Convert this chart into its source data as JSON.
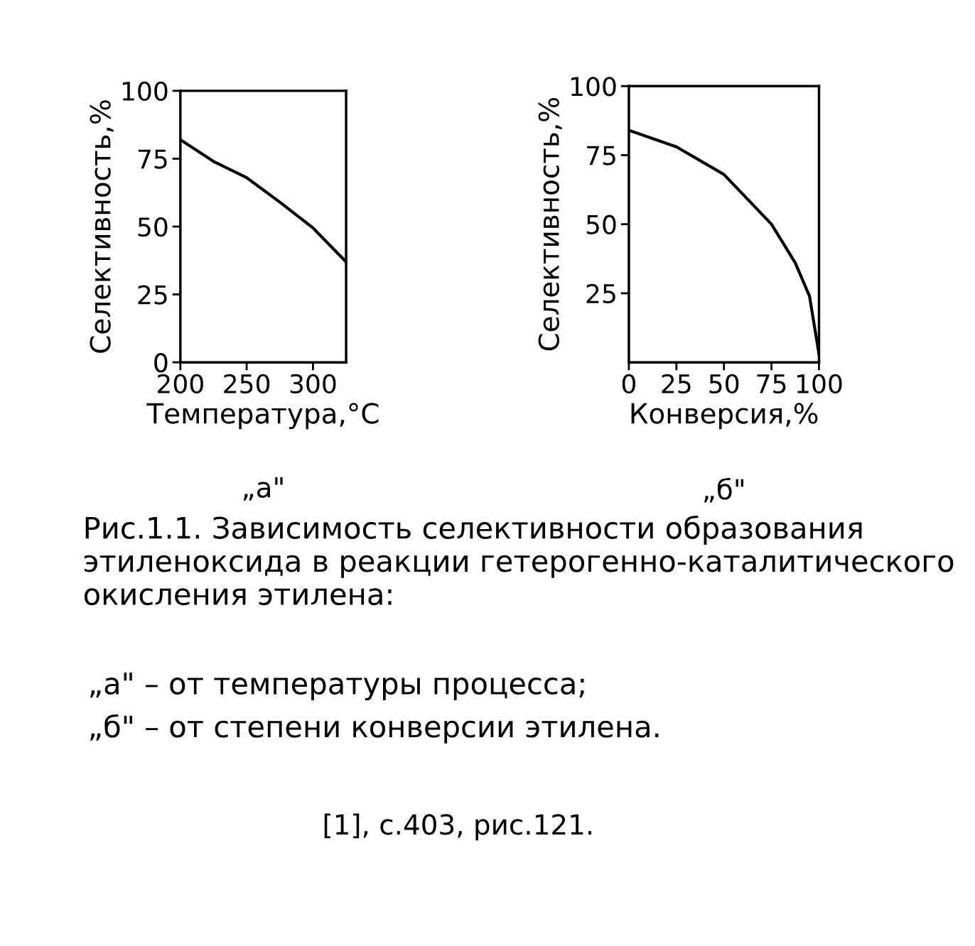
{
  "chart_data": [
    {
      "type": "line",
      "subtitle": "„а\"",
      "xlabel": "Температура,°С",
      "ylabel": "Селективность,%",
      "x": [
        200,
        225,
        250,
        275,
        300,
        325
      ],
      "series": [
        {
          "color": "#000000",
          "values": [
            82,
            74,
            68,
            59,
            49.5,
            37
          ]
        }
      ],
      "xlim": [
        200,
        325
      ],
      "ylim": [
        0,
        100
      ],
      "xticks": [
        200,
        250,
        300
      ],
      "yticks": [
        0,
        25,
        50,
        75,
        100
      ],
      "grid": false,
      "marker": "none",
      "line_style": "solid",
      "annotations": [
        "Рис.1.1. Зависимость селективности образования этиленоксида в реакции гетерогенно-каталитического окисления этилена:",
        "„а\" – от температуры процесса;",
        "„б\" – от степени конверсии этилена.",
        "[1], с.403, рис.121."
      ]
    },
    {
      "type": "line",
      "subtitle": "„б\"",
      "xlabel": "Конверсия,%",
      "ylabel": "Селективность,%",
      "x": [
        0,
        25,
        50,
        75,
        87.5,
        95,
        100
      ],
      "series": [
        {
          "color": "#000000",
          "values": [
            84,
            78,
            68,
            50,
            36,
            24,
            3
          ]
        }
      ],
      "xlim": [
        0,
        100
      ],
      "ylim": [
        0,
        100
      ],
      "xticks": [
        0,
        25,
        50,
        75,
        100
      ],
      "yticks": [
        25,
        50,
        75,
        100
      ],
      "grid": false,
      "marker": "none",
      "line_style": "solid"
    }
  ]
}
